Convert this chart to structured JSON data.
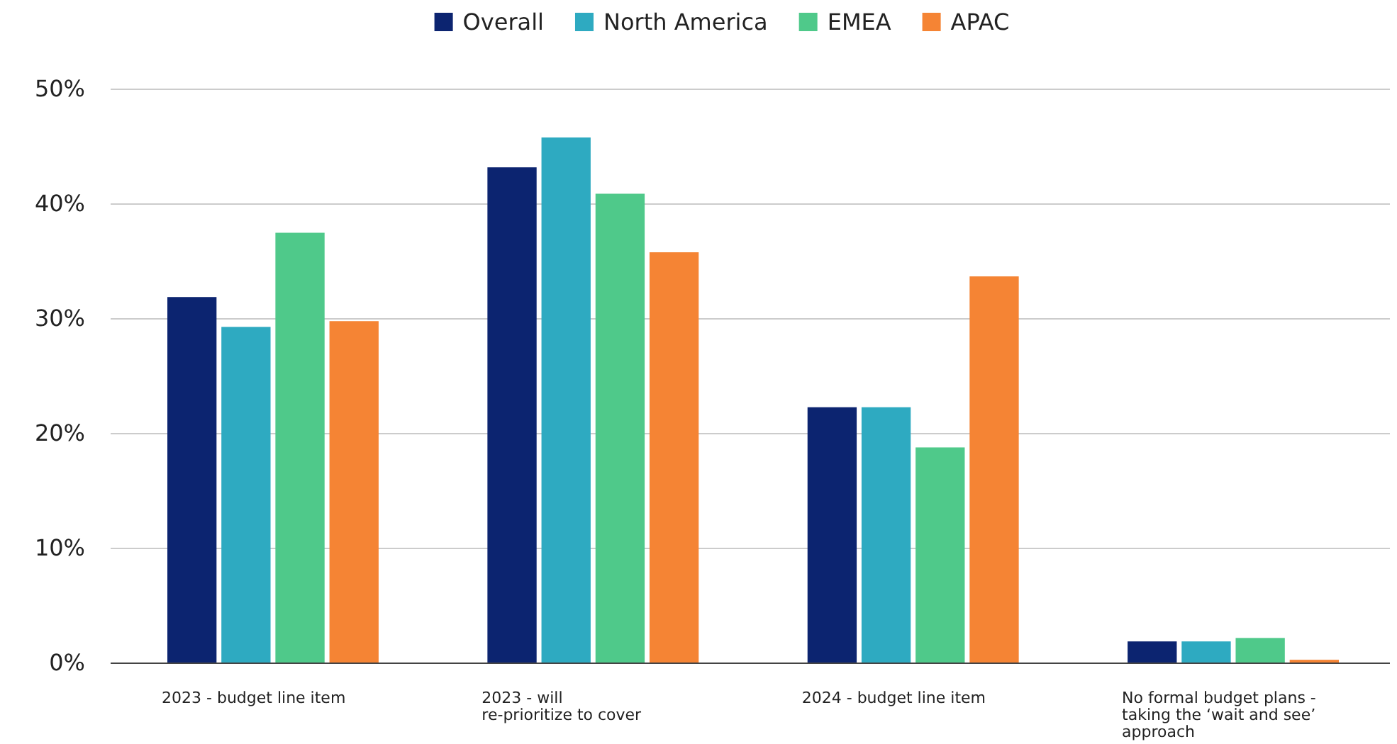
{
  "chart_data": {
    "type": "bar",
    "categories": [
      "2023 - budget line item",
      "2023 - will\nre-prioritize to cover",
      "2024 - budget line item",
      "No formal budget plans -\ntaking the ‘wait and see’\napproach"
    ],
    "series": [
      {
        "name": "Overall",
        "color": "#0c2470",
        "values": [
          31.9,
          43.2,
          22.3,
          1.9
        ]
      },
      {
        "name": "North America",
        "color": "#2eaac1",
        "values": [
          29.3,
          45.8,
          22.3,
          1.9
        ]
      },
      {
        "name": "EMEA",
        "color": "#4fc98a",
        "values": [
          37.5,
          40.9,
          18.8,
          2.2
        ]
      },
      {
        "name": "APAC",
        "color": "#f58434",
        "values": [
          29.8,
          35.8,
          33.7,
          0.3
        ]
      }
    ],
    "ylim": [
      0,
      50
    ],
    "yticks": [
      {
        "value": 0,
        "label": "0%"
      },
      {
        "value": 10,
        "label": "10%"
      },
      {
        "value": 20,
        "label": "20%"
      },
      {
        "value": 30,
        "label": "30%"
      },
      {
        "value": 40,
        "label": "40%"
      },
      {
        "value": 50,
        "label": "50%"
      }
    ],
    "grid": "y",
    "legend": "top"
  }
}
